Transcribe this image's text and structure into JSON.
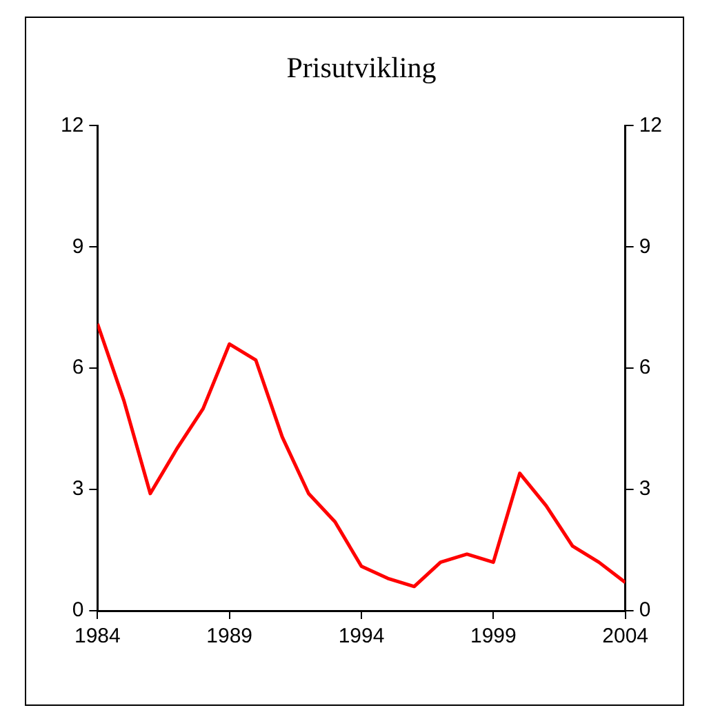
{
  "chart_data": {
    "type": "line",
    "title": "Prisutvikling",
    "x": [
      1984,
      1985,
      1986,
      1987,
      1988,
      1989,
      1990,
      1991,
      1992,
      1993,
      1994,
      1995,
      1996,
      1997,
      1998,
      1999,
      2000,
      2001,
      2002,
      2003,
      2004
    ],
    "series": [
      {
        "color": "#ff0000",
        "values": [
          7.1,
          5.2,
          2.9,
          4.0,
          5.0,
          6.6,
          6.2,
          4.3,
          2.9,
          2.2,
          1.1,
          0.8,
          0.6,
          1.2,
          1.4,
          1.2,
          3.4,
          2.6,
          1.6,
          1.2,
          0.7
        ]
      }
    ],
    "xlim": [
      1984,
      2004
    ],
    "xticks": [
      1984,
      1989,
      1994,
      1999,
      2004
    ],
    "ylim": [
      0,
      12
    ],
    "yticks": [
      0,
      3,
      6,
      9,
      12
    ],
    "y2lim": [
      0,
      12
    ],
    "y2ticks": [
      0,
      3,
      6,
      9,
      12
    ],
    "grid": false,
    "legend": false,
    "marker": "none",
    "line_style": "solid"
  }
}
